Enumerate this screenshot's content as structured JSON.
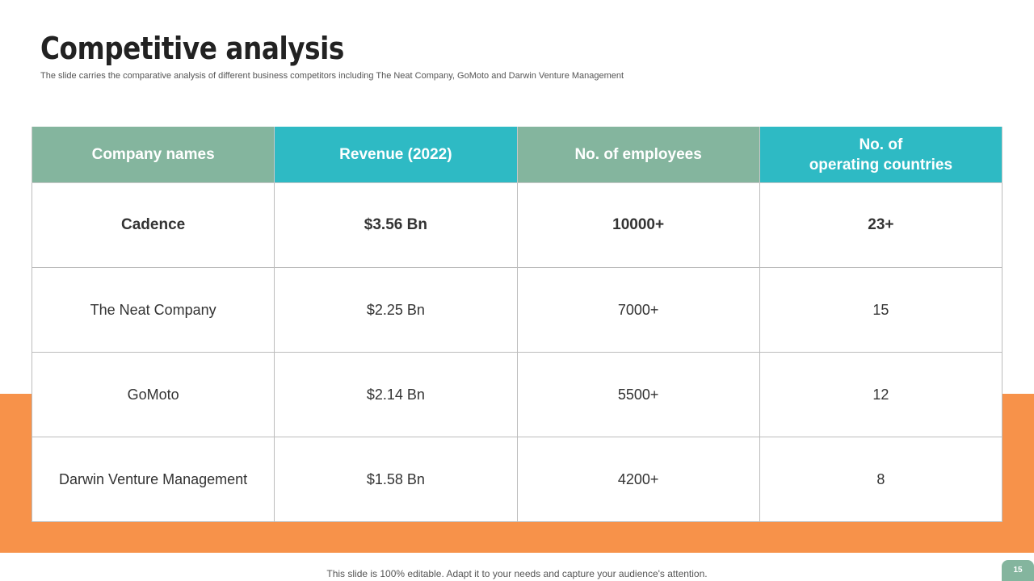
{
  "slide": {
    "title": "Competitive analysis",
    "subtitle": "The slide carries the comparative analysis of different business competitors including The Neat Company, GoMoto  and Darwin Venture Management",
    "footer_note": "This slide is 100% editable. Adapt it to your needs and capture your audience's attention.",
    "page_number": "15"
  },
  "colors": {
    "header_green": "#84b59e",
    "header_teal": "#2ebac4",
    "orange": "#f7924a",
    "page_badge": "#84b59e"
  },
  "table": {
    "headers": [
      "Company names",
      "Revenue (2022)",
      "No. of employees",
      "No. of\noperating countries"
    ],
    "rows": [
      [
        "Cadence",
        "$3.56 Bn",
        "10000+",
        "23+"
      ],
      [
        "The Neat Company",
        "$2.25 Bn",
        "7000+",
        "15"
      ],
      [
        "GoMoto",
        "$2.14 Bn",
        "5500+",
        "12"
      ],
      [
        "Darwin Venture Management",
        "$1.58 Bn",
        "4200+",
        "8"
      ]
    ]
  }
}
